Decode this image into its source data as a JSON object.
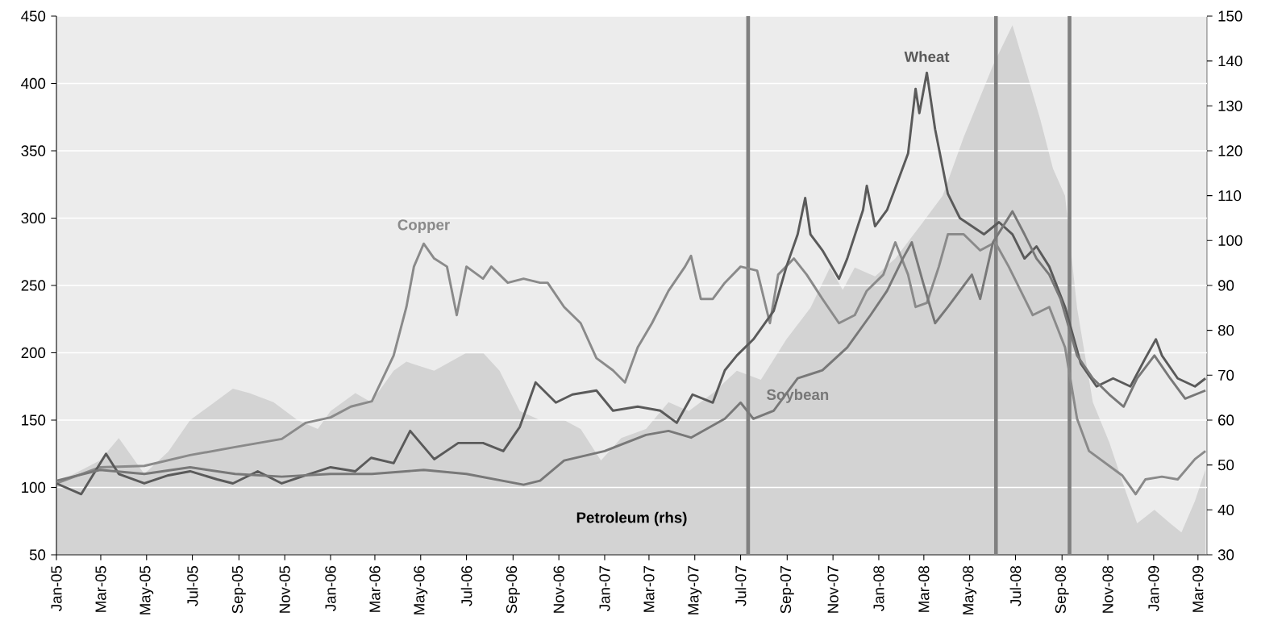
{
  "chart_data": {
    "type": "line",
    "xlim": [
      "2005-01-01",
      "2009-03-13"
    ],
    "xticks": [
      {
        "value": "2005-01-01",
        "label": "Jan-05"
      },
      {
        "value": "2005-03-01",
        "label": "Mar-05"
      },
      {
        "value": "2005-05-01",
        "label": "May-05"
      },
      {
        "value": "2005-07-01",
        "label": "Jul-05"
      },
      {
        "value": "2005-09-01",
        "label": "Sep-05"
      },
      {
        "value": "2005-11-01",
        "label": "Nov-05"
      },
      {
        "value": "2006-01-01",
        "label": "Jan-06"
      },
      {
        "value": "2006-03-01",
        "label": "Mar-06"
      },
      {
        "value": "2006-05-01",
        "label": "May-06"
      },
      {
        "value": "2006-07-01",
        "label": "Jul-06"
      },
      {
        "value": "2006-09-01",
        "label": "Sep-06"
      },
      {
        "value": "2006-11-01",
        "label": "Nov-06"
      },
      {
        "value": "2007-01-01",
        "label": "Jan-07"
      },
      {
        "value": "2007-03-01",
        "label": "Mar-07"
      },
      {
        "value": "2007-05-01",
        "label": "May-07"
      },
      {
        "value": "2007-07-01",
        "label": "Jul-07"
      },
      {
        "value": "2007-09-01",
        "label": "Sep-07"
      },
      {
        "value": "2007-11-01",
        "label": "Nov-07"
      },
      {
        "value": "2008-01-01",
        "label": "Jan-08"
      },
      {
        "value": "2008-03-01",
        "label": "Mar-08"
      },
      {
        "value": "2008-05-01",
        "label": "May-08"
      },
      {
        "value": "2008-07-01",
        "label": "Jul-08"
      },
      {
        "value": "2008-09-01",
        "label": "Sep-08"
      },
      {
        "value": "2008-11-01",
        "label": "Nov-08"
      },
      {
        "value": "2009-01-01",
        "label": "Jan-09"
      },
      {
        "value": "2009-03-01",
        "label": "Mar-09"
      }
    ],
    "ylim": [
      50,
      450
    ],
    "yticks": [
      50,
      100,
      150,
      200,
      250,
      300,
      350,
      400,
      450
    ],
    "y2lim": [
      30,
      150
    ],
    "y2ticks": [
      30,
      40,
      50,
      60,
      70,
      80,
      90,
      100,
      110,
      120,
      130,
      140,
      150
    ],
    "grid": "y",
    "series": [
      {
        "name": "Petroleum (rhs)",
        "type": "area",
        "axis": "y2",
        "color": "#d3d3d3",
        "x": [
          "2005-01-01",
          "2005-02-28",
          "2005-03-25",
          "2005-04-28",
          "2005-05-30",
          "2005-06-28",
          "2005-08-24",
          "2005-09-15",
          "2005-10-17",
          "2005-11-18",
          "2005-12-15",
          "2006-01-01",
          "2006-02-03",
          "2006-02-24",
          "2006-03-26",
          "2006-04-12",
          "2006-05-19",
          "2006-07-01",
          "2006-07-23",
          "2006-08-14",
          "2006-09-10",
          "2006-10-07",
          "2006-11-08",
          "2006-11-30",
          "2006-12-27",
          "2007-01-23",
          "2007-02-25",
          "2007-03-27",
          "2007-04-23",
          "2007-05-25",
          "2007-06-26",
          "2007-07-28",
          "2007-08-31",
          "2007-10-02",
          "2007-10-28",
          "2007-11-14",
          "2007-11-30",
          "2007-12-27",
          "2008-01-23",
          "2008-02-24",
          "2008-03-26",
          "2008-04-23",
          "2008-05-15",
          "2008-06-01",
          "2008-06-27",
          "2008-07-13",
          "2008-08-03",
          "2008-08-20",
          "2008-09-05",
          "2008-09-21",
          "2008-10-12",
          "2008-11-03",
          "2008-11-25",
          "2008-12-10",
          "2009-01-02",
          "2009-01-23",
          "2009-02-07",
          "2009-02-25",
          "2009-03-11"
        ],
        "values": [
          46,
          51,
          56,
          48,
          53,
          60,
          67,
          66,
          64,
          60,
          58,
          62,
          66,
          64,
          71,
          73,
          71,
          75,
          75,
          71,
          62,
          60,
          60,
          58,
          51,
          56,
          58,
          64,
          62,
          66,
          71,
          69,
          78,
          85,
          94,
          89,
          94,
          92,
          96,
          103,
          110,
          123,
          132,
          139,
          148,
          139,
          127,
          116,
          110,
          85,
          64,
          55,
          44,
          37,
          40,
          37,
          35,
          42,
          49
        ]
      },
      {
        "name": "Copper",
        "color": "#8a8a8a",
        "x": [
          "2005-01-01",
          "2005-02-28",
          "2005-04-28",
          "2005-06-28",
          "2005-08-27",
          "2005-10-28",
          "2005-11-29",
          "2006-01-01",
          "2006-01-28",
          "2006-02-25",
          "2006-03-26",
          "2006-04-12",
          "2006-04-22",
          "2006-05-05",
          "2006-05-19",
          "2006-06-05",
          "2006-06-18",
          "2006-07-01",
          "2006-07-23",
          "2006-08-03",
          "2006-08-25",
          "2006-09-15",
          "2006-10-07",
          "2006-10-17",
          "2006-11-08",
          "2006-11-30",
          "2006-12-21",
          "2007-01-12",
          "2007-01-28",
          "2007-02-14",
          "2007-03-05",
          "2007-03-27",
          "2007-04-18",
          "2007-04-26",
          "2007-05-09",
          "2007-05-25",
          "2007-06-10",
          "2007-07-01",
          "2007-07-23",
          "2007-08-09",
          "2007-08-20",
          "2007-09-10",
          "2007-09-27",
          "2007-10-18",
          "2007-11-09",
          "2007-11-30",
          "2007-12-16",
          "2008-01-07",
          "2008-01-23",
          "2008-02-09",
          "2008-02-19",
          "2008-03-05",
          "2008-03-21",
          "2008-04-02",
          "2008-04-23",
          "2008-05-15",
          "2008-06-04",
          "2008-06-22",
          "2008-07-08",
          "2008-07-24",
          "2008-08-15",
          "2008-09-05",
          "2008-09-21",
          "2008-10-07",
          "2008-10-29",
          "2008-11-20",
          "2008-12-08",
          "2008-12-21",
          "2009-01-12",
          "2009-02-02",
          "2009-02-25",
          "2009-03-11"
        ],
        "values": [
          103,
          115,
          116,
          124,
          130,
          136,
          148,
          152,
          160,
          164,
          198,
          234,
          264,
          281,
          270,
          264,
          228,
          264,
          255,
          264,
          252,
          255,
          252,
          252,
          234,
          222,
          196,
          187,
          178,
          204,
          222,
          246,
          264,
          272,
          240,
          240,
          252,
          264,
          261,
          222,
          258,
          270,
          258,
          240,
          222,
          228,
          246,
          258,
          282,
          258,
          234,
          237,
          264,
          288,
          288,
          276,
          282,
          264,
          246,
          228,
          234,
          204,
          151,
          127,
          118,
          109,
          95,
          106,
          108,
          106,
          121,
          127
        ]
      },
      {
        "name": "Wheat",
        "color": "#5a5a5a",
        "x": [
          "2005-01-01",
          "2005-02-03",
          "2005-03-08",
          "2005-03-25",
          "2005-04-28",
          "2005-05-30",
          "2005-06-28",
          "2005-08-03",
          "2005-08-24",
          "2005-09-26",
          "2005-10-28",
          "2005-11-29",
          "2006-01-01",
          "2006-02-03",
          "2006-02-24",
          "2006-03-26",
          "2006-04-17",
          "2006-05-19",
          "2006-06-20",
          "2006-07-23",
          "2006-08-19",
          "2006-09-10",
          "2006-10-01",
          "2006-10-28",
          "2006-11-19",
          "2006-12-21",
          "2007-01-12",
          "2007-02-14",
          "2007-03-16",
          "2007-04-07",
          "2007-04-28",
          "2007-05-25",
          "2007-06-10",
          "2007-06-26",
          "2007-07-18",
          "2007-08-14",
          "2007-08-31",
          "2007-09-15",
          "2007-09-25",
          "2007-10-02",
          "2007-10-18",
          "2007-11-09",
          "2007-11-20",
          "2007-12-11",
          "2007-12-16",
          "2007-12-27",
          "2008-01-12",
          "2008-01-28",
          "2008-02-09",
          "2008-02-19",
          "2008-02-24",
          "2008-03-05",
          "2008-03-16",
          "2008-04-02",
          "2008-04-18",
          "2008-05-04",
          "2008-05-20",
          "2008-06-09",
          "2008-06-27",
          "2008-07-13",
          "2008-07-29",
          "2008-08-15",
          "2008-09-05",
          "2008-09-26",
          "2008-10-17",
          "2008-11-08",
          "2008-12-01",
          "2008-12-21",
          "2009-01-04",
          "2009-01-12",
          "2009-02-02",
          "2009-02-25",
          "2009-03-11"
        ],
        "values": [
          103,
          95,
          125,
          110,
          103,
          109,
          112,
          106,
          103,
          112,
          103,
          109,
          115,
          112,
          122,
          118,
          142,
          121,
          133,
          133,
          127,
          145,
          178,
          163,
          169,
          172,
          157,
          160,
          157,
          148,
          169,
          163,
          187,
          198,
          210,
          231,
          264,
          288,
          315,
          288,
          276,
          255,
          270,
          306,
          324,
          294,
          306,
          330,
          348,
          396,
          378,
          408,
          366,
          318,
          300,
          294,
          288,
          297,
          288,
          270,
          279,
          264,
          234,
          192,
          175,
          181,
          175,
          196,
          210,
          198,
          181,
          175,
          181
        ]
      },
      {
        "name": "Soybean",
        "color": "#787878",
        "x": [
          "2005-01-01",
          "2005-02-28",
          "2005-04-28",
          "2005-06-28",
          "2005-08-27",
          "2005-10-28",
          "2006-01-01",
          "2006-02-25",
          "2006-05-05",
          "2006-07-01",
          "2006-09-15",
          "2006-10-07",
          "2006-11-08",
          "2007-01-01",
          "2007-02-25",
          "2007-03-27",
          "2007-04-26",
          "2007-06-10",
          "2007-07-01",
          "2007-07-18",
          "2007-08-14",
          "2007-09-15",
          "2007-10-18",
          "2007-11-20",
          "2007-12-21",
          "2008-01-12",
          "2008-02-02",
          "2008-02-14",
          "2008-02-29",
          "2008-03-16",
          "2008-04-02",
          "2008-04-18",
          "2008-05-04",
          "2008-05-15",
          "2008-06-01",
          "2008-06-27",
          "2008-07-13",
          "2008-07-29",
          "2008-08-15",
          "2008-08-30",
          "2008-09-21",
          "2008-10-12",
          "2008-11-03",
          "2008-11-22",
          "2008-12-10",
          "2009-01-02",
          "2009-01-23",
          "2009-02-12",
          "2009-03-11"
        ],
        "values": [
          105,
          113,
          110,
          115,
          110,
          108,
          110,
          110,
          113,
          110,
          102,
          105,
          120,
          127,
          139,
          142,
          137,
          151,
          163,
          151,
          157,
          181,
          187,
          204,
          228,
          246,
          270,
          282,
          252,
          222,
          234,
          246,
          258,
          240,
          282,
          305,
          288,
          270,
          258,
          240,
          198,
          181,
          169,
          160,
          181,
          198,
          181,
          166,
          172
        ]
      }
    ],
    "ref_lines": [
      {
        "axis": "x",
        "value": "2007-07-11",
        "color": "#808080"
      },
      {
        "axis": "x",
        "value": "2008-06-05",
        "color": "#808080"
      },
      {
        "axis": "x",
        "value": "2008-09-11",
        "color": "#808080"
      }
    ]
  }
}
